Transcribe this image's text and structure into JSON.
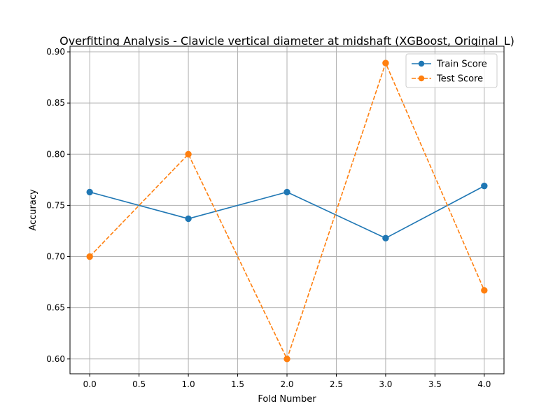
{
  "chart_data": {
    "type": "line",
    "title": "Overfitting Analysis - Clavicle vertical diameter at midshaft (XGBoost, Original_L)",
    "xlabel": "Fold Number",
    "ylabel": "Accuracy",
    "x": [
      0,
      1,
      2,
      3,
      4
    ],
    "xlim": [
      -0.2,
      4.2
    ],
    "ylim": [
      0.5855,
      0.9055
    ],
    "xticks": [
      0.0,
      0.5,
      1.0,
      1.5,
      2.0,
      2.5,
      3.0,
      3.5,
      4.0
    ],
    "xtick_labels": [
      "0.0",
      "0.5",
      "1.0",
      "1.5",
      "2.0",
      "2.5",
      "3.0",
      "3.5",
      "4.0"
    ],
    "yticks": [
      0.6,
      0.65,
      0.7,
      0.75,
      0.8,
      0.85,
      0.9
    ],
    "ytick_labels": [
      "0.60",
      "0.65",
      "0.70",
      "0.75",
      "0.80",
      "0.85",
      "0.90"
    ],
    "grid": true,
    "legend_position": "top-right",
    "series": [
      {
        "name": "Train Score",
        "values": [
          0.763,
          0.737,
          0.763,
          0.718,
          0.769
        ],
        "color": "#1f77b4",
        "linestyle": "solid",
        "marker": "circle"
      },
      {
        "name": "Test Score",
        "values": [
          0.7,
          0.8,
          0.6,
          0.889,
          0.667
        ],
        "color": "#ff7f0e",
        "linestyle": "dashed",
        "marker": "circle"
      }
    ]
  }
}
